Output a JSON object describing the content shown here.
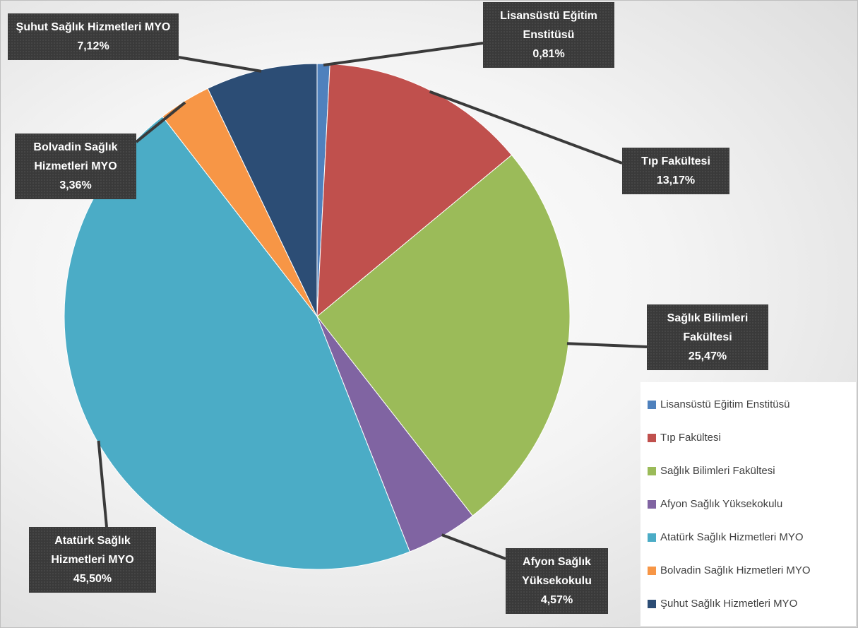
{
  "chart_data": {
    "type": "pie",
    "categories": [
      "Lisansüstü Eğitim Enstitüsü",
      "Tıp Fakültesi",
      "Sağlık Bilimleri Fakültesi",
      "Afyon Sağlık Yüksekokulu",
      "Atatürk Sağlık Hizmetleri MYO",
      "Bolvadin Sağlık Hizmetleri MYO",
      "Şuhut Sağlık Hizmetleri MYO"
    ],
    "values": [
      0.81,
      13.17,
      25.47,
      4.57,
      45.5,
      3.36,
      7.12
    ],
    "value_labels": [
      "0,81%",
      "13,17%",
      "25,47%",
      "4,57%",
      "45,50%",
      "3,36%",
      "7,12%"
    ],
    "colors": [
      "#4f81bd",
      "#c0504d",
      "#9bbb59",
      "#8064a2",
      "#4bacc6",
      "#f79646",
      "#2c4d75"
    ],
    "legend": "bottom-right"
  }
}
